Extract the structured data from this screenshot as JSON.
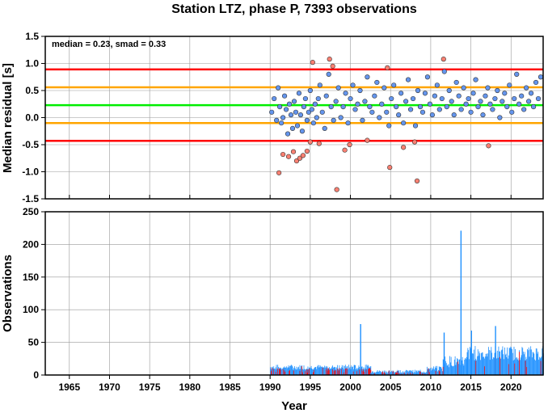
{
  "chart_data": [
    {
      "type": "scatter",
      "title": "Station LTZ, phase P, 7393 observations",
      "ylabel": "Median residual [s]",
      "annotation": "median = 0.23, smad = 0.33",
      "xlim": [
        1962,
        2024
      ],
      "ylim": [
        -1.5,
        1.5
      ],
      "yticks": [
        "-1.5",
        "-1.0",
        "-0.5",
        "0.0",
        "0.5",
        "1.0",
        "1.5"
      ],
      "grid": true,
      "reference_lines": [
        {
          "value": 0.89,
          "color": "#ff0000"
        },
        {
          "value": 0.56,
          "color": "#ffa500"
        },
        {
          "value": 0.23,
          "color": "#00ee00"
        },
        {
          "value": -0.1,
          "color": "#ffa500"
        },
        {
          "value": -0.43,
          "color": "#ff0000"
        }
      ],
      "colors": {
        "inlier": "#6495ed",
        "outlier": "#fa8072"
      },
      "series": [
        {
          "kind": "inlier",
          "x": [
            1990.2,
            1990.5,
            1990.8,
            1991.0,
            1991.2,
            1991.4,
            1991.6,
            1991.8,
            1992.0,
            1992.2,
            1992.4,
            1992.6,
            1992.8,
            1993.0,
            1993.2,
            1993.4,
            1993.6,
            1993.8,
            1994.0,
            1994.2,
            1994.4,
            1994.6,
            1994.8,
            1995.0,
            1995.2,
            1995.4,
            1995.6,
            1995.8,
            1996.0,
            1996.2,
            1996.5,
            1996.8,
            1997.0,
            1997.3,
            1997.6,
            1997.9,
            1998.2,
            1998.5,
            1998.8,
            1999.1,
            1999.4,
            1999.7,
            2000.0,
            2000.3,
            2000.6,
            2000.9,
            2001.2,
            2001.5,
            2001.8,
            2002.1,
            2002.4,
            2002.7,
            2003.0,
            2003.3,
            2003.6,
            2003.9,
            2004.2,
            2004.5,
            2004.8,
            2005.1,
            2005.4,
            2005.7,
            2006.0,
            2006.3,
            2006.6,
            2006.9,
            2007.2,
            2007.5,
            2007.8,
            2008.1,
            2008.4,
            2008.7,
            2009.0,
            2009.3,
            2009.6,
            2009.9,
            2010.2,
            2010.5,
            2010.8,
            2011.1,
            2011.4,
            2011.7,
            2012.0,
            2012.3,
            2012.6,
            2012.9,
            2013.2,
            2013.5,
            2013.8,
            2014.1,
            2014.4,
            2014.7,
            2015.0,
            2015.3,
            2015.6,
            2015.9,
            2016.2,
            2016.5,
            2016.8,
            2017.1,
            2017.4,
            2017.7,
            2018.0,
            2018.3,
            2018.6,
            2018.9,
            2019.2,
            2019.5,
            2019.8,
            2020.1,
            2020.4,
            2020.7,
            2021.0,
            2021.3,
            2021.6,
            2021.9,
            2022.2,
            2022.5,
            2022.8,
            2023.1,
            2023.4,
            2023.7
          ],
          "y": [
            0.1,
            0.35,
            -0.05,
            0.55,
            0.2,
            -0.1,
            0.0,
            0.4,
            0.15,
            -0.3,
            0.25,
            0.05,
            -0.2,
            0.3,
            0.1,
            -0.15,
            0.45,
            0.05,
            -0.25,
            0.2,
            0.35,
            -0.05,
            0.1,
            0.5,
            0.15,
            -0.1,
            0.25,
            0.0,
            0.35,
            0.6,
            0.1,
            -0.2,
            0.4,
            0.8,
            0.2,
            -0.05,
            0.3,
            0.55,
            0.0,
            0.2,
            0.45,
            -0.1,
            0.35,
            0.6,
            0.15,
            0.25,
            0.5,
            -0.05,
            0.3,
            0.75,
            0.2,
            0.1,
            0.4,
            0.65,
            0.0,
            0.25,
            0.55,
            0.1,
            -0.15,
            0.35,
            0.6,
            0.2,
            0.05,
            0.45,
            -0.1,
            0.3,
            0.7,
            0.15,
            0.35,
            -0.15,
            0.5,
            0.2,
            0.1,
            0.45,
            0.75,
            0.25,
            0.05,
            0.4,
            0.6,
            0.15,
            0.35,
            0.85,
            0.2,
            0.5,
            0.3,
            0.05,
            0.65,
            0.4,
            0.15,
            0.55,
            0.25,
            0.35,
            0.1,
            0.45,
            0.7,
            0.2,
            0.3,
            0.05,
            0.4,
            0.55,
            0.25,
            0.15,
            0.35,
            0.5,
            0.0,
            0.3,
            0.45,
            0.2,
            0.6,
            0.1,
            0.35,
            0.8,
            0.25,
            0.4,
            0.15,
            0.55,
            0.3,
            0.45,
            0.2,
            0.65,
            0.35,
            0.75
          ]
        },
        {
          "kind": "outlier",
          "x": [
            1991.1,
            1991.6,
            1992.3,
            1992.9,
            1993.3,
            1993.7,
            1994.1,
            1994.6,
            1995.0,
            1995.3,
            1996.1,
            1997.4,
            1997.8,
            1998.3,
            1999.3,
            1999.9,
            2002.1,
            2004.6,
            2004.9,
            2006.6,
            2008.0,
            2008.3,
            2011.6,
            2017.2
          ],
          "y": [
            -1.02,
            -0.68,
            -0.72,
            -0.63,
            -0.8,
            -0.75,
            -0.7,
            -0.62,
            -0.45,
            1.02,
            -0.48,
            1.08,
            0.95,
            -1.33,
            -0.6,
            -0.5,
            -0.42,
            0.92,
            -0.92,
            -0.55,
            -0.45,
            -1.17,
            1.08,
            -0.52
          ]
        }
      ]
    },
    {
      "type": "bar",
      "ylabel": "Observations",
      "xlabel": "Year",
      "xlim": [
        1962,
        2024
      ],
      "ylim": [
        0,
        250
      ],
      "xticks": [
        "1965",
        "1970",
        "1975",
        "1980",
        "1985",
        "1990",
        "1995",
        "2000",
        "2005",
        "2010",
        "2015",
        "2020"
      ],
      "yticks": [
        "0",
        "50",
        "100",
        "150",
        "200",
        "250"
      ],
      "grid": true,
      "colors": {
        "inlier": "#1e90ff",
        "outlier": "#ff0000"
      },
      "peaks": [
        {
          "x": 2001.2,
          "value": 78
        },
        {
          "x": 2011.6,
          "value": 65
        },
        {
          "x": 2013.7,
          "value": 221
        },
        {
          "x": 2015.0,
          "value": 68
        },
        {
          "x": 2018.0,
          "value": 75
        }
      ],
      "segments": [
        {
          "from": 1990.0,
          "to": 2002.5,
          "typical": [
            8,
            16
          ],
          "red_share": 0.3
        },
        {
          "from": 2002.5,
          "to": 2009.5,
          "typical": [
            3,
            8
          ],
          "red_share": 0.25
        },
        {
          "from": 2009.5,
          "to": 2011.5,
          "typical": [
            5,
            14
          ],
          "red_share": 0.15
        },
        {
          "from": 2011.5,
          "to": 2014.5,
          "typical": [
            12,
            30
          ],
          "red_share": 0.1
        },
        {
          "from": 2014.5,
          "to": 2024.0,
          "typical": [
            22,
            45
          ],
          "red_share": 0.05
        }
      ]
    }
  ]
}
